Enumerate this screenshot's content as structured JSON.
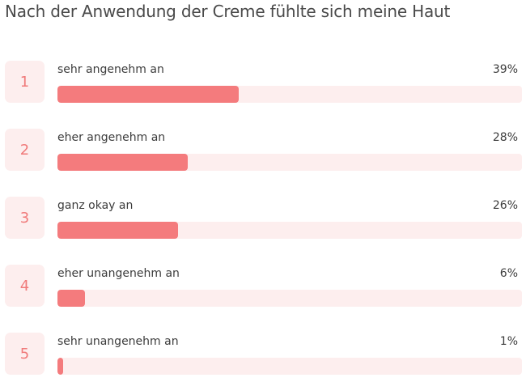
{
  "title": "Nach der Anwendung der Creme fühlte sich meine Haut",
  "colors": {
    "accent": "#f47b7d",
    "track": "#fdeeee",
    "rank_text": "#f07a7a"
  },
  "chart_data": {
    "type": "bar",
    "orientation": "horizontal",
    "title": "Nach der Anwendung der Creme fühlte sich meine Haut",
    "categories": [
      "sehr angenehm an",
      "eher angenehm an",
      "ganz okay an",
      "eher unangenehm an",
      "sehr unangenehm an"
    ],
    "ranks": [
      "1",
      "2",
      "3",
      "4",
      "5"
    ],
    "values": [
      39,
      28,
      26,
      6,
      1
    ],
    "value_labels": [
      "39%",
      "28%",
      "26%",
      "6%",
      "1%"
    ],
    "unit": "%",
    "xlim": [
      0,
      100
    ],
    "grid": false,
    "legend": "none"
  }
}
